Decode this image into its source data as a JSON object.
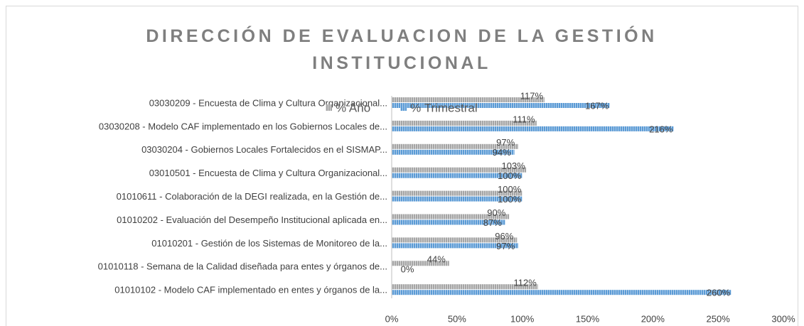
{
  "chart_data": {
    "type": "bar",
    "orientation": "horizontal",
    "title": "DIRECCIÓN DE EVALUACION DE LA GESTIÓN INSTITUCIONAL",
    "categories": [
      "03030209 - Encuesta de Clima y Cultura Organizacional...",
      "03030208 - Modelo CAF implementado en los Gobiernos Locales de...",
      "03030204 - Gobiernos Locales Fortalecidos en el SISMAP...",
      "03010501 - Encuesta de Clima y Cultura Organizacional...",
      "01010611 - Colaboración de la DEGI realizada, en la Gestión de...",
      "01010202 - Evaluación del Desempeño Institucional aplicada en...",
      "01010201 - Gestión de los Sistemas de Monitoreo de la...",
      "01010118 - Semana de la Calidad diseñada para entes y órganos de...",
      "01010102 - Modelo CAF implementado en entes y órganos de la..."
    ],
    "series": [
      {
        "name": "% Año",
        "color": "#a5a5a5",
        "values": [
          117,
          111,
          97,
          103,
          100,
          90,
          96,
          44,
          112
        ],
        "value_labels": [
          "117%",
          "111%",
          "97%",
          "103%",
          "100%",
          "90%",
          "96%",
          "44%",
          "112%"
        ]
      },
      {
        "name": "% Trimestral",
        "color": "#5b9bd5",
        "values": [
          167,
          216,
          94,
          100,
          100,
          87,
          97,
          0,
          260
        ],
        "value_labels": [
          "167%",
          "216%",
          "94%",
          "100%",
          "100%",
          "87%",
          "97%",
          "0%",
          "260%"
        ]
      }
    ],
    "xlim": [
      0,
      300
    ],
    "xticks": [
      {
        "value": 0,
        "label": "0%"
      },
      {
        "value": 50,
        "label": "50%"
      },
      {
        "value": 100,
        "label": "100%"
      },
      {
        "value": 150,
        "label": "150%"
      },
      {
        "value": 200,
        "label": "200%"
      },
      {
        "value": 250,
        "label": "250%"
      },
      {
        "value": 300,
        "label": "300%"
      }
    ],
    "legend": "top",
    "grid": false
  }
}
